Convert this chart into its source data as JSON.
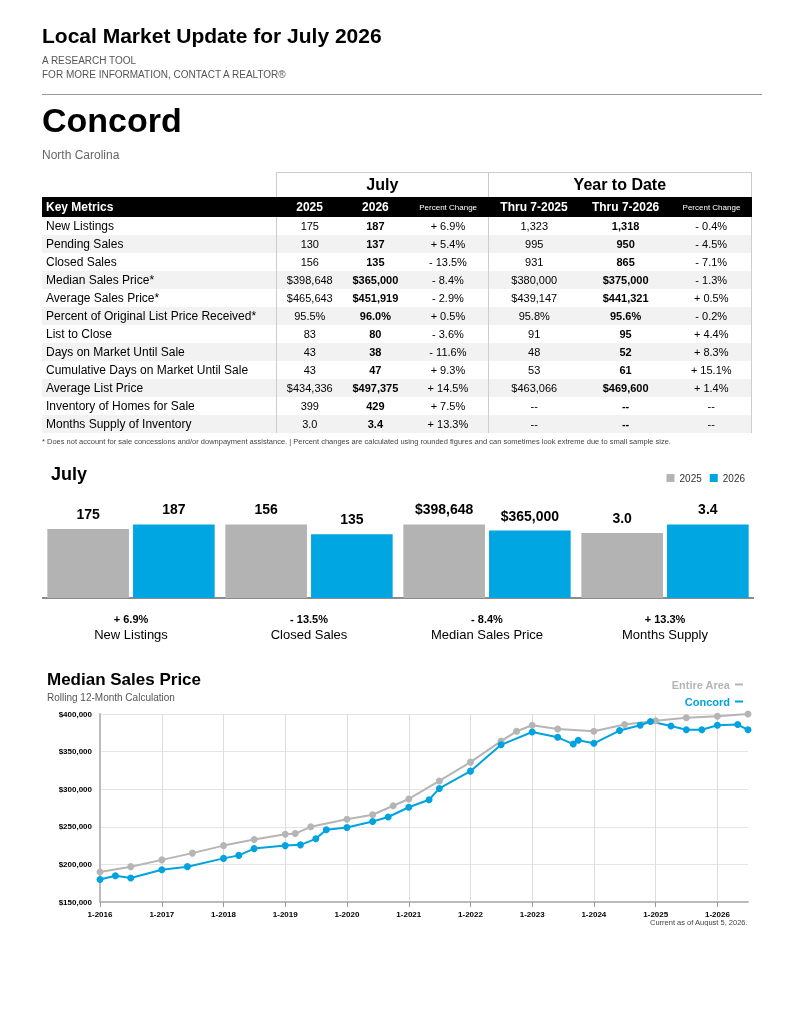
{
  "chart_data": [
    {
      "type": "other",
      "title": "Local Market Update for July 2026",
      "subtitle": "A RESEARCH TOOL\nFOR MORE INFORMATION, CONTACT A REALTOR®",
      "ylabel": "Key Metrics",
      "categories": [
        "2025",
        "2026",
        "Percent Change",
        "Thru 7-2025",
        "Thru 7-2026",
        "Percent Change"
      ],
      "y_categories": [
        "New Listings",
        "Pending Sales",
        "Closed Sales",
        "Median Sales Price*",
        "Average Sales Price*",
        "Percent of Original List Price Received*",
        "List to Close",
        "Days on Market Until Sale",
        "Cumulative Days on Market Until Sale",
        "Average List Price",
        "Inventory of Homes for Sale",
        "Months Supply of Inventory"
      ],
      "cell_labels": [
        [
          "175",
          "187",
          "+ 6.9%",
          "1,323",
          "1,318",
          "- 0.4%"
        ],
        [
          "130",
          "137",
          "+ 5.4%",
          "995",
          "950",
          "- 4.5%"
        ],
        [
          "156",
          "135",
          "- 13.5%",
          "931",
          "865",
          "- 7.1%"
        ],
        [
          "$398,648",
          "$365,000",
          "- 8.4%",
          "$380,000",
          "$375,000",
          "- 1.3%"
        ],
        [
          "$465,643",
          "$451,919",
          "- 2.9%",
          "$439,147",
          "$441,321",
          "+ 0.5%"
        ],
        [
          "95.5%",
          "96.0%",
          "+ 0.5%",
          "95.8%",
          "95.6%",
          "- 0.2%"
        ],
        [
          "83",
          "80",
          "- 3.6%",
          "91",
          "95",
          "+ 4.4%"
        ],
        [
          "43",
          "38",
          "- 11.6%",
          "48",
          "52",
          "+ 8.3%"
        ],
        [
          "43",
          "47",
          "+ 9.3%",
          "53",
          "61",
          "+ 15.1%"
        ],
        [
          "$434,336",
          "$497,375",
          "+ 14.5%",
          "$463,066",
          "$469,600",
          "+ 1.4%"
        ],
        [
          "399",
          "429",
          "+ 7.5%",
          "--",
          "--",
          "--"
        ],
        [
          "3.0",
          "3.4",
          "+ 13.3%",
          "--",
          "--",
          "--"
        ]
      ],
      "annotations": [
        "Concord",
        "North Carolina",
        "July",
        "Year to Date",
        "* Does not account for sale concessions and/or downpayment assistance.  |  Percent changes are calculated using rounded figures and can sometimes look extreme due to small sample size."
      ]
    },
    {
      "type": "bar",
      "title": "July",
      "xlabel": "New Listings",
      "categories": [
        null
      ],
      "annotations": [
        "+ 6.9%"
      ],
      "series": [
        {
          "color": "#b3b3b3",
          "values": [
            175
          ],
          "value_labels": [
            "175"
          ]
        },
        {
          "color": "#00a6e2",
          "values": [
            187
          ],
          "value_labels": [
            "187"
          ]
        }
      ]
    },
    {
      "type": "bar",
      "xlabel": "Closed Sales",
      "categories": [
        null
      ],
      "annotations": [
        "- 13.5%"
      ],
      "series": [
        {
          "color": "#b3b3b3",
          "values": [
            156
          ],
          "value_labels": [
            "156"
          ]
        },
        {
          "color": "#00a6e2",
          "values": [
            135
          ],
          "value_labels": [
            "135"
          ]
        }
      ]
    },
    {
      "type": "bar",
      "xlabel": "Median Sales Price",
      "categories": [
        null
      ],
      "annotations": [
        "- 8.4%"
      ],
      "series": [
        {
          "color": "#b3b3b3",
          "values": [
            398648
          ],
          "value_labels": [
            "$398,648"
          ]
        },
        {
          "color": "#00a6e2",
          "values": [
            365000
          ],
          "value_labels": [
            "$365,000"
          ]
        }
      ]
    },
    {
      "type": "bar",
      "xlabel": "Months Supply",
      "categories": [
        null
      ],
      "annotations": [
        "+ 13.3%"
      ],
      "legend": "top right",
      "series": [
        {
          "name": "2025",
          "color": "#b3b3b3",
          "values": [
            3.0
          ],
          "value_labels": [
            "3.0"
          ]
        },
        {
          "name": "2026",
          "color": "#00a6e2",
          "values": [
            3.4
          ],
          "value_labels": [
            "3.4"
          ]
        }
      ]
    },
    {
      "type": "line",
      "title": "Median Sales Price",
      "subtitle": "Rolling 12-Month Calculation",
      "legend": "top right",
      "grid": true,
      "marker": "circle",
      "xlim": [
        "2016-01",
        "2026-07"
      ],
      "xticks": [
        {
          "value": "2016-01",
          "label": "1-2016"
        },
        {
          "value": "2017-01",
          "label": "1-2017"
        },
        {
          "value": "2018-01",
          "label": "1-2018"
        },
        {
          "value": "2019-01",
          "label": "1-2019"
        },
        {
          "value": "2020-01",
          "label": "1-2020"
        },
        {
          "value": "2021-01",
          "label": "1-2021"
        },
        {
          "value": "2022-01",
          "label": "1-2022"
        },
        {
          "value": "2023-01",
          "label": "1-2023"
        },
        {
          "value": "2024-01",
          "label": "1-2024"
        },
        {
          "value": "2025-01",
          "label": "1-2025"
        },
        {
          "value": "2026-01",
          "label": "1-2026"
        }
      ],
      "ylim": [
        150000,
        400000
      ],
      "yticks": [
        {
          "value": 150000,
          "label": "$150,000"
        },
        {
          "value": 200000,
          "label": "$200,000"
        },
        {
          "value": 250000,
          "label": "$250,000"
        },
        {
          "value": 300000,
          "label": "$300,000"
        },
        {
          "value": 350000,
          "label": "$350,000"
        },
        {
          "value": 400000,
          "label": "$400,000"
        }
      ],
      "series": [
        {
          "name": "Entire Area",
          "color": "#b5b5b5",
          "x": [
            "2016-01",
            "2016-07",
            "2017-01",
            "2017-07",
            "2018-01",
            "2018-07",
            "2019-01",
            "2019-03",
            "2019-06",
            "2020-01",
            "2020-06",
            "2020-10",
            "2021-01",
            "2021-07",
            "2022-01",
            "2022-07",
            "2022-10",
            "2023-01",
            "2023-06",
            "2024-01",
            "2024-07",
            "2025-01",
            "2025-07",
            "2026-01",
            "2026-07"
          ],
          "values": [
            190000,
            197000,
            206000,
            215000,
            225000,
            233000,
            240000,
            241000,
            250000,
            260000,
            266000,
            278000,
            287000,
            311000,
            336000,
            364000,
            377000,
            385000,
            380000,
            377000,
            386000,
            391000,
            395000,
            397000,
            400000
          ]
        },
        {
          "name": "Concord",
          "color": "#00a3e0",
          "x": [
            "2016-01",
            "2016-04",
            "2016-07",
            "2017-01",
            "2017-06",
            "2018-01",
            "2018-04",
            "2018-07",
            "2019-01",
            "2019-04",
            "2019-07",
            "2019-09",
            "2020-01",
            "2020-06",
            "2020-09",
            "2021-01",
            "2021-05",
            "2021-07",
            "2022-01",
            "2022-07",
            "2023-01",
            "2023-06",
            "2023-09",
            "2023-10",
            "2024-01",
            "2024-06",
            "2024-10",
            "2024-12",
            "2025-04",
            "2025-07",
            "2025-10",
            "2026-01",
            "2026-05",
            "2026-07"
          ],
          "values": [
            180000,
            185000,
            182000,
            193000,
            197000,
            208000,
            212000,
            221000,
            225000,
            226000,
            234000,
            246000,
            249000,
            257000,
            263000,
            276000,
            286000,
            301000,
            324000,
            359000,
            376000,
            369000,
            360000,
            365000,
            361000,
            378000,
            385000,
            390000,
            384000,
            379000,
            379000,
            385000,
            386000,
            379000
          ]
        }
      ],
      "annotations": [
        "Current as of August 5, 2026."
      ]
    }
  ]
}
